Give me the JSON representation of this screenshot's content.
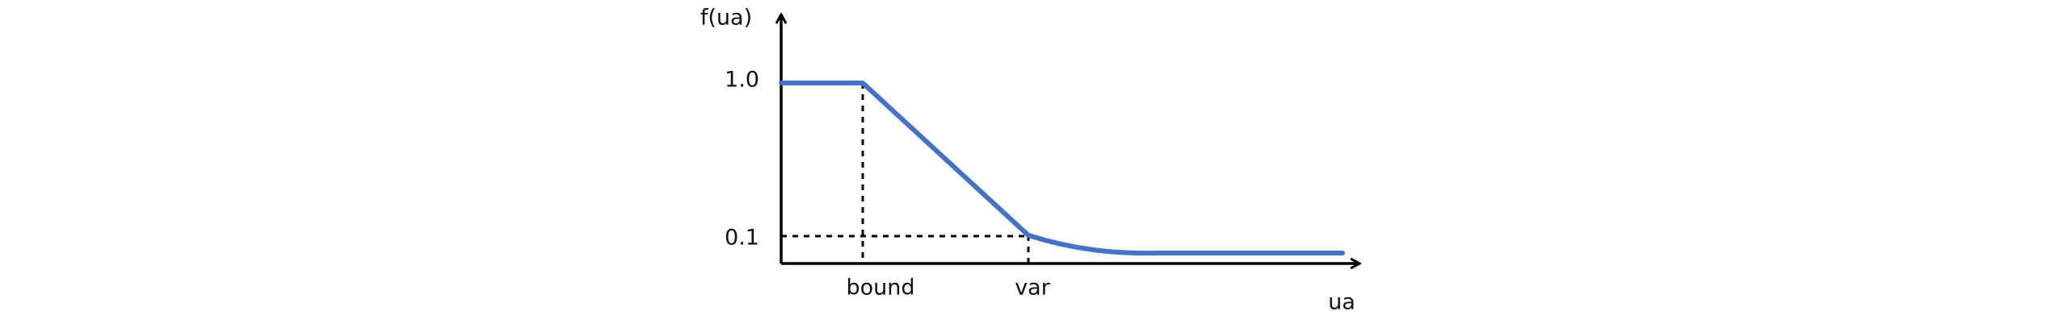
{
  "axes": {
    "y_label": "f(ua)",
    "x_label": "ua"
  },
  "y_marks": [
    "1.0",
    "0.1"
  ],
  "x_marks": [
    "bound",
    "var"
  ]
}
